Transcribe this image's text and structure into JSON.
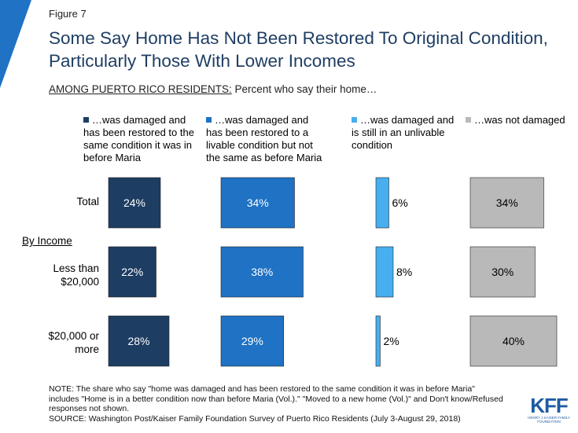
{
  "figure_label": "Figure 7",
  "title": "Some Say Home Has Not Been Restored To Original Condition, Particularly Those With Lower Incomes",
  "subtitle_underlined": "AMONG PUERTO RICO RESIDENTS:",
  "subtitle_rest": " Percent who say their home…",
  "by_income_label": "By Income",
  "note": "NOTE: The share who say \"home was damaged and has been restored to the same condition it was in before Maria\" includes \"Home is in a better condition now than before Maria (Vol.).\" \"Moved to a new home (Vol.)\" and Don't know/Refused responses not shown.",
  "source": "SOURCE: Washington Post/Kaiser Family Foundation Survey of Puerto Rico Residents (July 3-August 29, 2018)",
  "logo": {
    "text": "KFF",
    "subtext": "HENRY J KAISER FAMILY FOUNDATION"
  },
  "colors": {
    "restored_same": "#1d3d62",
    "restored_livable": "#1f72c4",
    "unlivable": "#47aef0",
    "not_damaged": "#b9b9b9",
    "title": "#1f3e63",
    "corner_accent": "#1f72c4"
  },
  "chart_data": {
    "type": "bar",
    "categories": [
      "Total",
      "Less than $20,000",
      "$20,000 or more"
    ],
    "series": [
      {
        "name": "…was damaged and has been restored to the same condition it was in before Maria",
        "values": [
          24,
          22,
          28
        ]
      },
      {
        "name": "…was damaged and has been restored to a livable condition but not the same as before Maria",
        "values": [
          34,
          38,
          29
        ]
      },
      {
        "name": "…was damaged and is still in an unlivable condition",
        "values": [
          6,
          8,
          2
        ]
      },
      {
        "name": "…was not damaged",
        "values": [
          34,
          30,
          40
        ]
      }
    ],
    "value_suffix": "%"
  }
}
